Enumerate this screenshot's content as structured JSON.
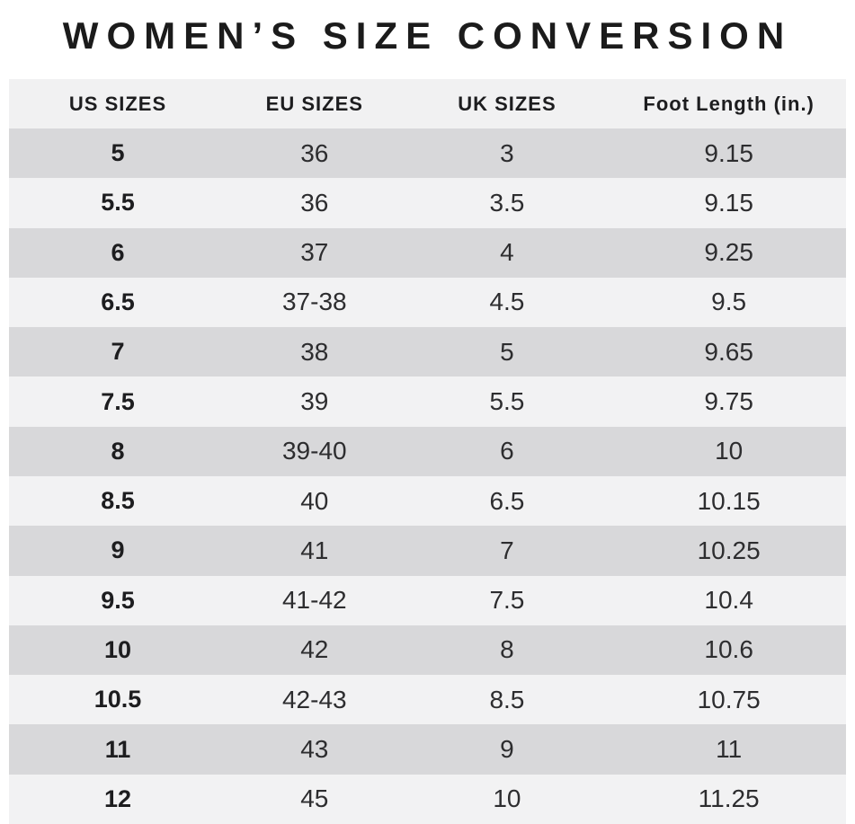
{
  "colors": {
    "title_text": "#1b1b1b",
    "header_bg": "#f1f1f2",
    "row_dark": "#d8d8da",
    "row_light": "#f2f2f3",
    "text": "#1d1d1f",
    "value_text": "#2d2d2f",
    "page_bg": "#ffffff"
  },
  "chart_data": {
    "type": "table",
    "title": "WOMEN’S SIZE CONVERSION",
    "headers": [
      "US SIZES",
      "EU SIZES",
      "UK SIZES",
      "Foot Length (in.)"
    ],
    "column_keys": [
      "us-size",
      "eu-size",
      "uk-size",
      "foot-length"
    ],
    "rows": [
      [
        "5",
        "36",
        "3",
        "9.15"
      ],
      [
        "5.5",
        "36",
        "3.5",
        "9.15"
      ],
      [
        "6",
        "37",
        "4",
        "9.25"
      ],
      [
        "6.5",
        "37-38",
        "4.5",
        "9.5"
      ],
      [
        "7",
        "38",
        "5",
        "9.65"
      ],
      [
        "7.5",
        "39",
        "5.5",
        "9.75"
      ],
      [
        "8",
        "39-40",
        "6",
        "10"
      ],
      [
        "8.5",
        "40",
        "6.5",
        "10.15"
      ],
      [
        "9",
        "41",
        "7",
        "10.25"
      ],
      [
        "9.5",
        "41-42",
        "7.5",
        "10.4"
      ],
      [
        "10",
        "42",
        "8",
        "10.6"
      ],
      [
        "10.5",
        "42-43",
        "8.5",
        "10.75"
      ],
      [
        "11",
        "43",
        "9",
        "11"
      ],
      [
        "12",
        "45",
        "10",
        "11.25"
      ]
    ]
  }
}
